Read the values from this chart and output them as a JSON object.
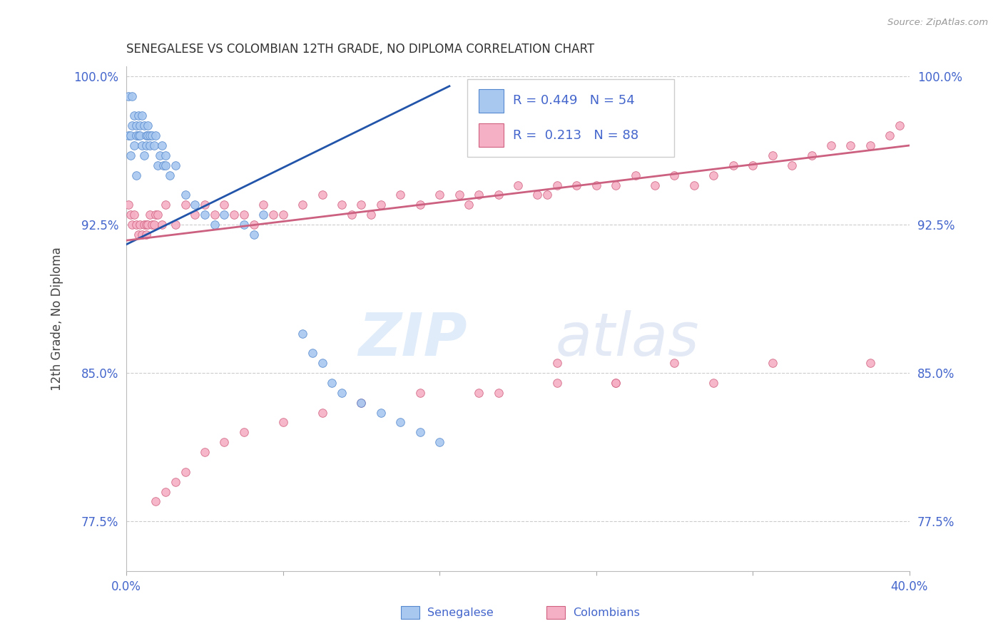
{
  "title": "SENEGALESE VS COLOMBIAN 12TH GRADE, NO DIPLOMA CORRELATION CHART",
  "source": "Source: ZipAtlas.com",
  "ylabel": "12th Grade, No Diploma",
  "xlim": [
    0.0,
    0.4
  ],
  "ylim": [
    0.75,
    1.005
  ],
  "yticks": [
    0.775,
    0.85,
    0.925,
    1.0
  ],
  "ytick_labels": [
    "77.5%",
    "85.0%",
    "92.5%",
    "100.0%"
  ],
  "xticks": [
    0.0,
    0.08,
    0.16,
    0.24,
    0.32,
    0.4
  ],
  "xtick_labels": [
    "0.0%",
    "",
    "",
    "",
    "",
    "40.0%"
  ],
  "blue_r": "0.449",
  "blue_n": "54",
  "pink_r": "0.213",
  "pink_n": "88",
  "blue_fill": "#a8c8f0",
  "blue_edge": "#5588cc",
  "pink_fill": "#f5b0c5",
  "pink_edge": "#d06080",
  "blue_line": "#2255aa",
  "pink_line": "#cc6080",
  "label_color": "#4466cc",
  "grid_color": "#cccccc",
  "title_color": "#333333",
  "source_color": "#999999",
  "legend_text_color": "#333333",
  "legend_r_color": "#4466cc",
  "marker_size": 70,
  "blue_x": [
    0.001,
    0.001,
    0.002,
    0.002,
    0.003,
    0.003,
    0.004,
    0.004,
    0.005,
    0.005,
    0.005,
    0.006,
    0.006,
    0.007,
    0.007,
    0.008,
    0.008,
    0.009,
    0.009,
    0.01,
    0.01,
    0.011,
    0.011,
    0.012,
    0.012,
    0.013,
    0.014,
    0.015,
    0.016,
    0.017,
    0.018,
    0.019,
    0.02,
    0.02,
    0.022,
    0.025,
    0.03,
    0.035,
    0.04,
    0.045,
    0.05,
    0.06,
    0.065,
    0.07,
    0.09,
    0.095,
    0.1,
    0.105,
    0.11,
    0.12,
    0.13,
    0.14,
    0.15,
    0.16
  ],
  "blue_y": [
    0.97,
    0.99,
    0.97,
    0.96,
    0.975,
    0.99,
    0.965,
    0.98,
    0.975,
    0.97,
    0.95,
    0.97,
    0.98,
    0.975,
    0.97,
    0.965,
    0.98,
    0.96,
    0.975,
    0.97,
    0.965,
    0.97,
    0.975,
    0.97,
    0.965,
    0.97,
    0.965,
    0.97,
    0.955,
    0.96,
    0.965,
    0.955,
    0.96,
    0.955,
    0.95,
    0.955,
    0.94,
    0.935,
    0.93,
    0.925,
    0.93,
    0.925,
    0.92,
    0.93,
    0.87,
    0.86,
    0.855,
    0.845,
    0.84,
    0.835,
    0.83,
    0.825,
    0.82,
    0.815
  ],
  "pink_x": [
    0.001,
    0.002,
    0.003,
    0.004,
    0.005,
    0.006,
    0.007,
    0.008,
    0.009,
    0.01,
    0.01,
    0.011,
    0.012,
    0.013,
    0.014,
    0.015,
    0.016,
    0.018,
    0.02,
    0.025,
    0.03,
    0.035,
    0.04,
    0.045,
    0.05,
    0.055,
    0.06,
    0.065,
    0.07,
    0.075,
    0.08,
    0.09,
    0.1,
    0.11,
    0.115,
    0.12,
    0.125,
    0.13,
    0.14,
    0.15,
    0.16,
    0.17,
    0.175,
    0.18,
    0.19,
    0.2,
    0.21,
    0.215,
    0.22,
    0.23,
    0.24,
    0.25,
    0.26,
    0.27,
    0.28,
    0.29,
    0.3,
    0.31,
    0.32,
    0.33,
    0.34,
    0.35,
    0.36,
    0.37,
    0.38,
    0.39,
    0.395,
    0.3,
    0.25,
    0.22,
    0.18,
    0.15,
    0.12,
    0.1,
    0.08,
    0.06,
    0.05,
    0.04,
    0.03,
    0.025,
    0.02,
    0.015,
    0.22,
    0.28,
    0.33,
    0.38,
    0.25,
    0.19
  ],
  "pink_y": [
    0.935,
    0.93,
    0.925,
    0.93,
    0.925,
    0.92,
    0.925,
    0.92,
    0.925,
    0.925,
    0.92,
    0.925,
    0.93,
    0.925,
    0.925,
    0.93,
    0.93,
    0.925,
    0.935,
    0.925,
    0.935,
    0.93,
    0.935,
    0.93,
    0.935,
    0.93,
    0.93,
    0.925,
    0.935,
    0.93,
    0.93,
    0.935,
    0.94,
    0.935,
    0.93,
    0.935,
    0.93,
    0.935,
    0.94,
    0.935,
    0.94,
    0.94,
    0.935,
    0.94,
    0.94,
    0.945,
    0.94,
    0.94,
    0.945,
    0.945,
    0.945,
    0.945,
    0.95,
    0.945,
    0.95,
    0.945,
    0.95,
    0.955,
    0.955,
    0.96,
    0.955,
    0.96,
    0.965,
    0.965,
    0.965,
    0.97,
    0.975,
    0.845,
    0.845,
    0.845,
    0.84,
    0.84,
    0.835,
    0.83,
    0.825,
    0.82,
    0.815,
    0.81,
    0.8,
    0.795,
    0.79,
    0.785,
    0.855,
    0.855,
    0.855,
    0.855,
    0.845,
    0.84
  ],
  "blue_line_x0": 0.0,
  "blue_line_x1": 0.165,
  "blue_line_y0": 0.915,
  "blue_line_y1": 0.995,
  "pink_line_x0": 0.0,
  "pink_line_x1": 0.4,
  "pink_line_y0": 0.917,
  "pink_line_y1": 0.965
}
